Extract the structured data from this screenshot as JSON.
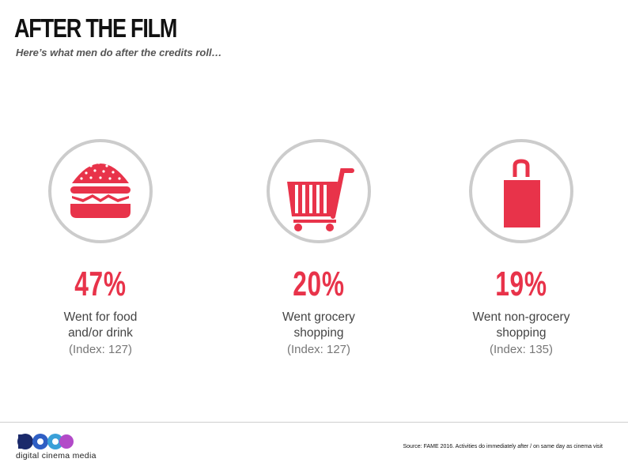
{
  "header": {
    "title": "AFTER THE FILM",
    "subtitle": "Here’s what men do after the credits roll…"
  },
  "stats": [
    {
      "icon": "burger-icon",
      "percent": "47%",
      "line1": "Went for food",
      "line2": "and/or drink",
      "index": "(Index: 127)"
    },
    {
      "icon": "shopping-cart-icon",
      "percent": "20%",
      "line1": "Went grocery",
      "line2": "shopping",
      "index": "(Index: 127)"
    },
    {
      "icon": "shopping-bag-icon",
      "percent": "19%",
      "line1": "Went non-grocery",
      "line2": "shopping",
      "index": "(Index: 135)"
    }
  ],
  "footer": {
    "logo_text": "digital cinema media",
    "source": "Source: FAME 2016. Activities do immediately after / on same day as cinema visit"
  },
  "colors": {
    "accent": "#e8334a",
    "ring": "#cccccc"
  }
}
